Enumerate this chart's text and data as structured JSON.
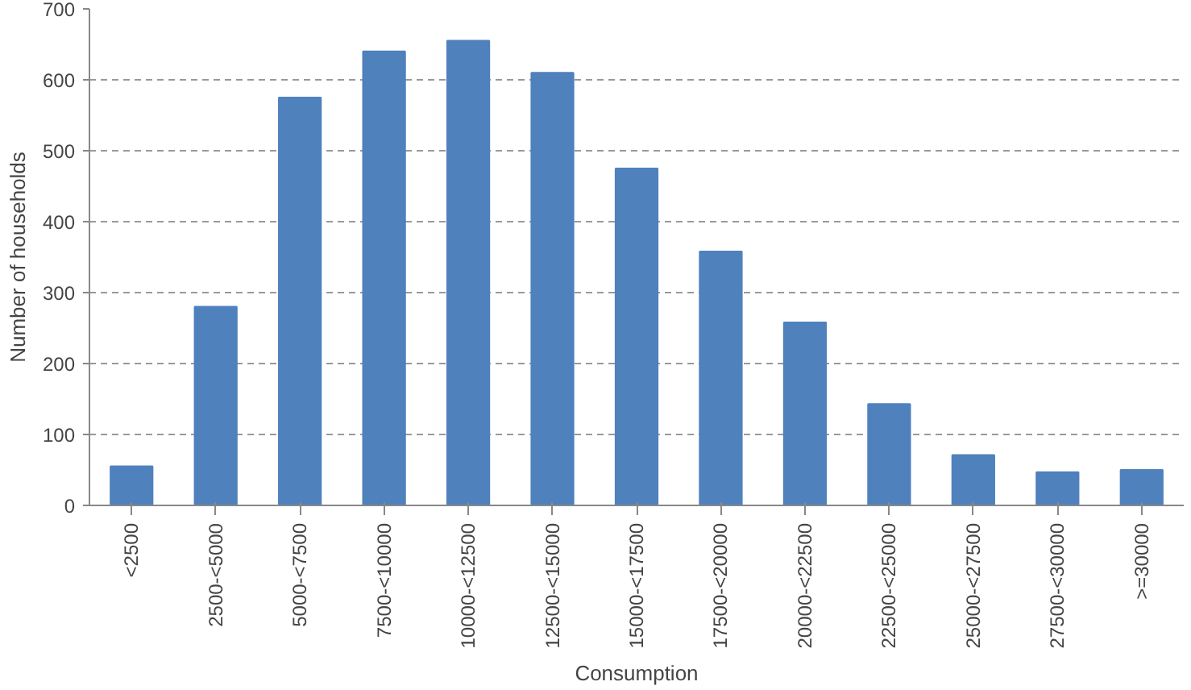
{
  "chart_data": {
    "type": "bar",
    "xlabel": "Consumption",
    "ylabel": "Number of households",
    "categories": [
      "<2500",
      "2500-<5000",
      "5000-<7500",
      "7500-<10000",
      "10000-<12500",
      "12500-<15000",
      "15000-<17500",
      "17500-<20000",
      "20000-<22500",
      "22500-<25000",
      "25000-<27500",
      "27500-<30000",
      ">=30000"
    ],
    "values": [
      55,
      280,
      575,
      640,
      655,
      610,
      475,
      358,
      258,
      143,
      71,
      47,
      50
    ],
    "color": "#4f81bd",
    "ylim": [
      0,
      700
    ],
    "yticks": [
      0,
      100,
      200,
      300,
      400,
      500,
      600,
      700
    ],
    "grid": "y"
  }
}
